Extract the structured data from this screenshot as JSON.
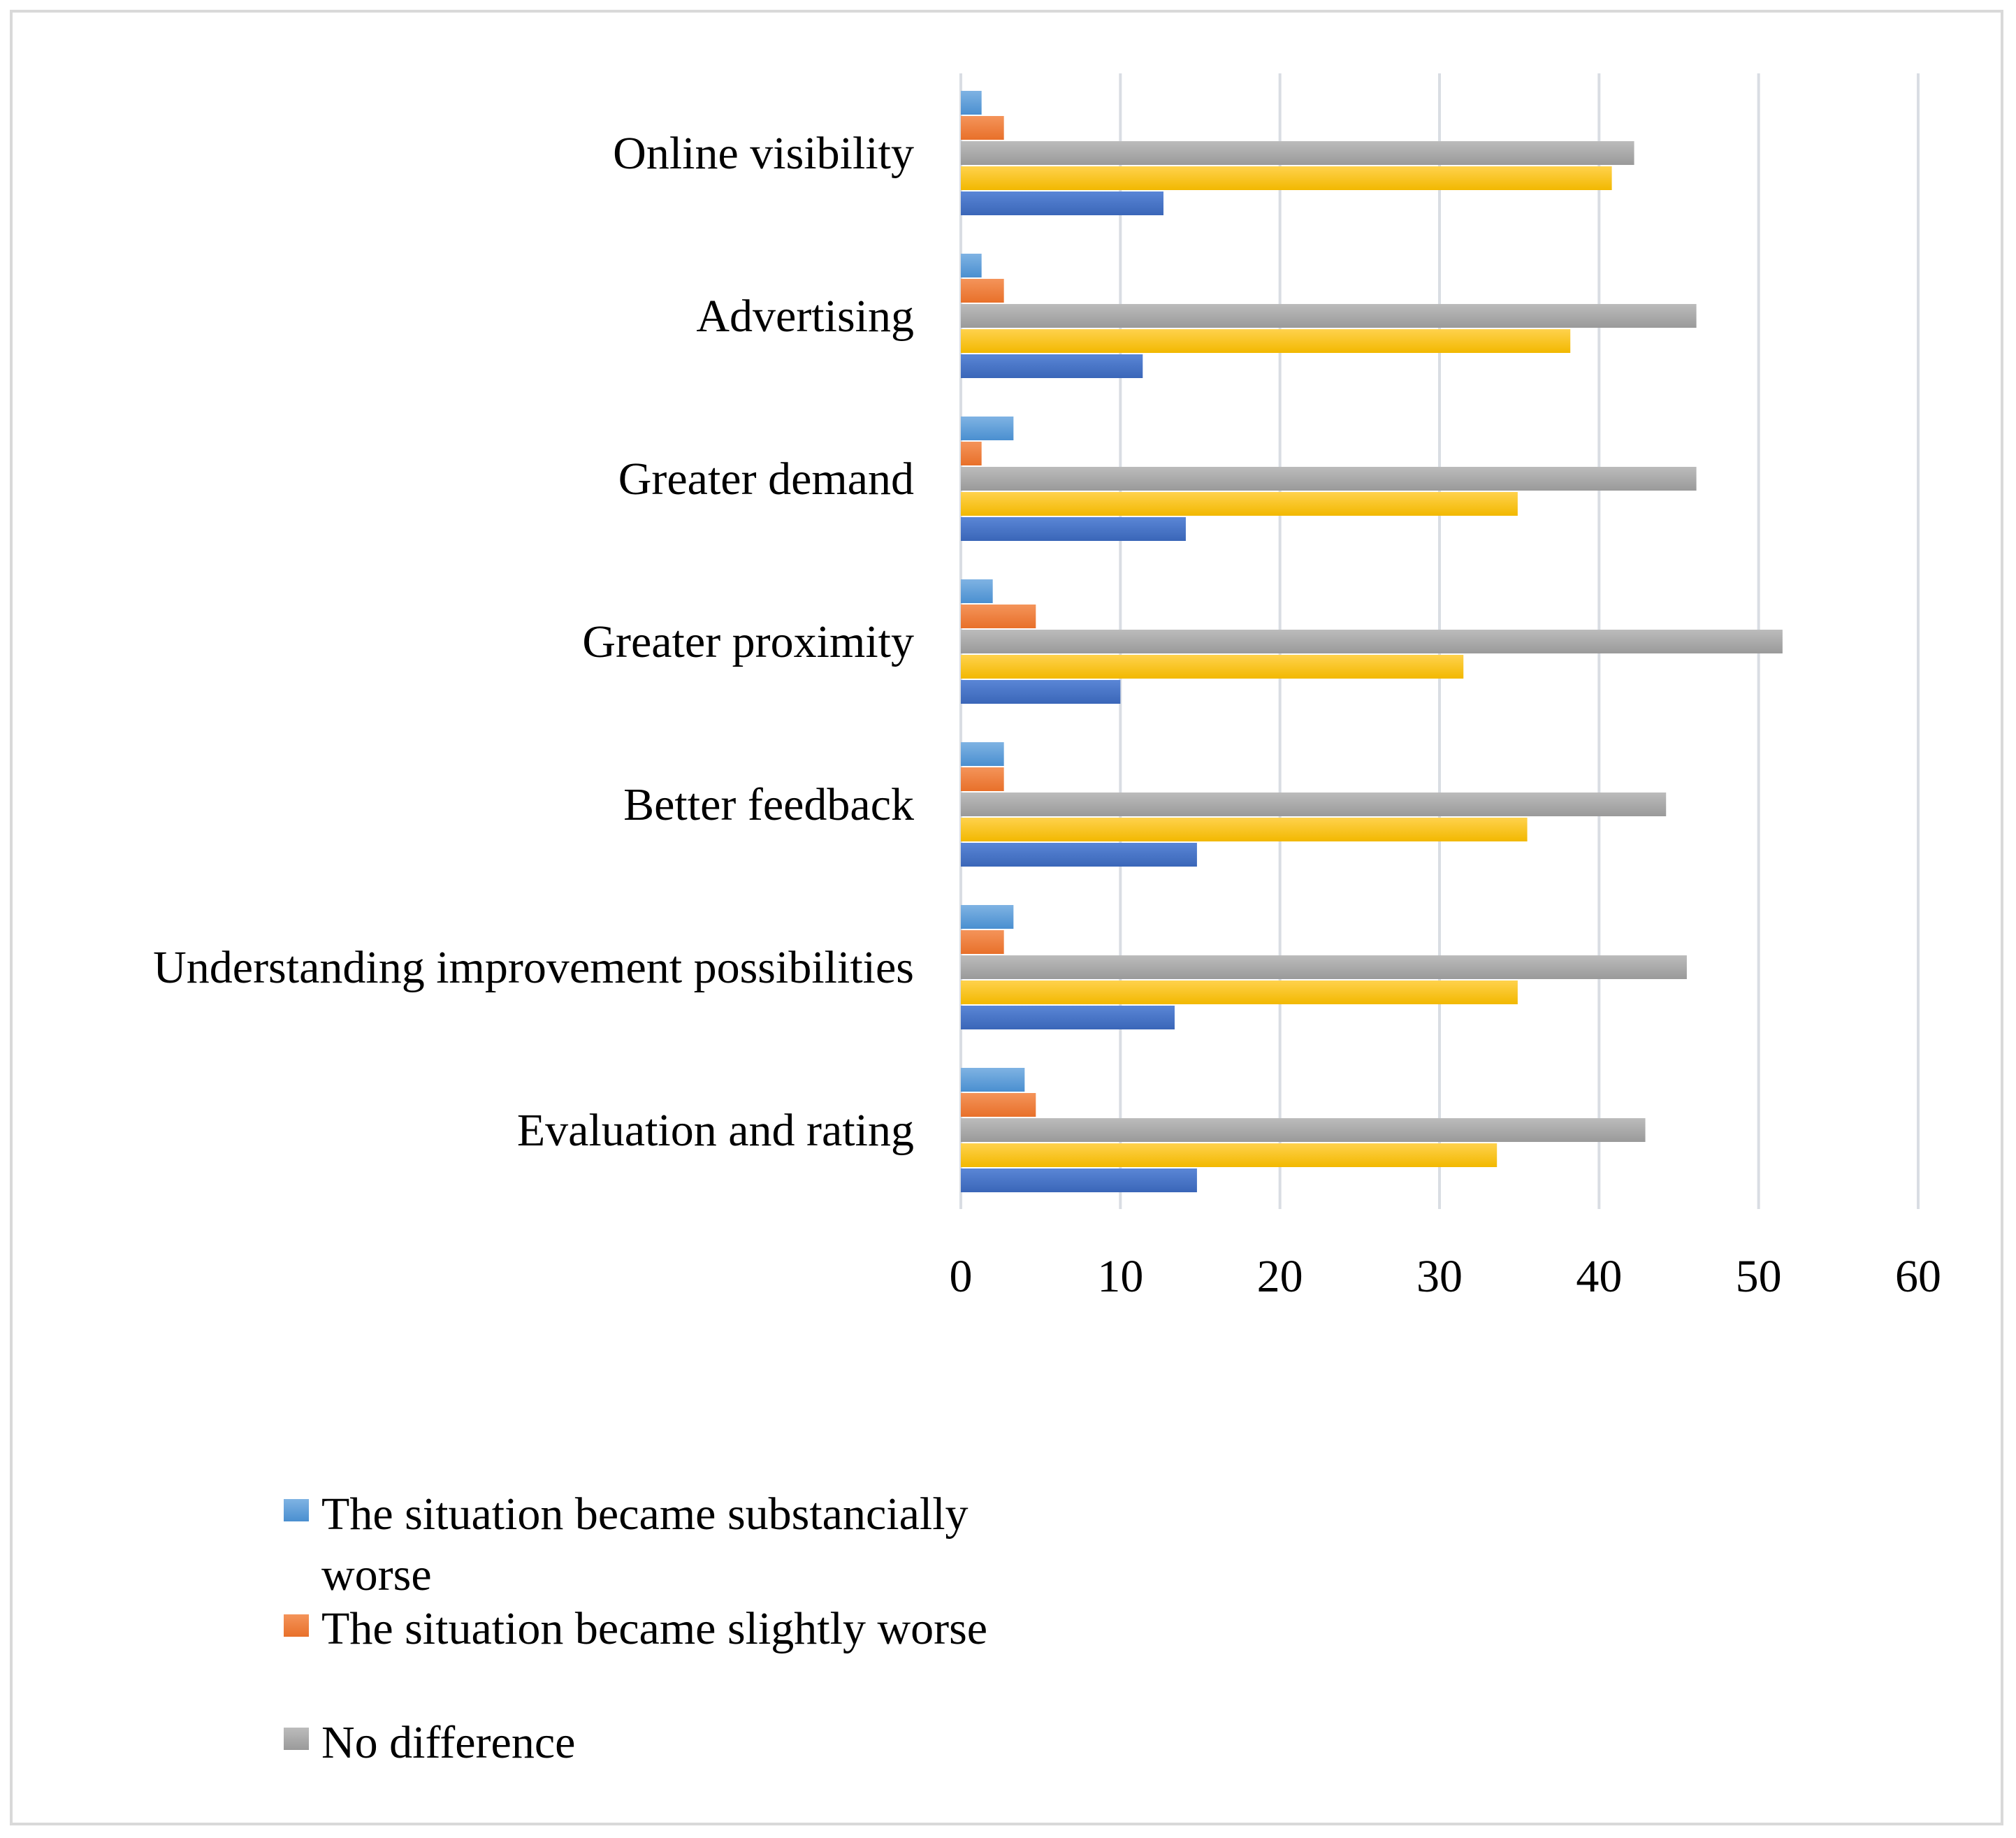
{
  "chart_data": {
    "type": "bar",
    "orientation": "horizontal",
    "title": "",
    "xlabel": "",
    "ylabel": "",
    "xlim": [
      0,
      60
    ],
    "x_ticks": [
      0,
      10,
      20,
      30,
      40,
      50,
      60
    ],
    "grid": true,
    "legend_position": "bottom-left",
    "categories": [
      "Online visibility",
      "Advertising",
      "Greater demand",
      "Greater proximity",
      "Better feedback",
      "Understanding improvement possibilities",
      "Evaluation and rating"
    ],
    "series": [
      {
        "name": "The situation became substancially worse",
        "color": "#5b9bd5",
        "values": [
          1.3,
          1.3,
          3.3,
          2.0,
          2.7,
          3.3,
          4.0
        ]
      },
      {
        "name": "The situation became slightly worse",
        "color": "#ed7d31",
        "values": [
          2.7,
          2.7,
          1.3,
          4.7,
          2.7,
          2.7,
          4.7
        ]
      },
      {
        "name": "No difference",
        "color": "#a5a5a5",
        "values": [
          42.2,
          46.1,
          46.1,
          51.5,
          44.2,
          45.5,
          42.9
        ]
      },
      {
        "name": "",
        "color": "#ffc000",
        "values": [
          40.8,
          38.2,
          34.9,
          31.5,
          35.5,
          34.9,
          33.6
        ]
      },
      {
        "name": "",
        "color": "#4472c4",
        "values": [
          12.7,
          11.4,
          14.1,
          10.0,
          14.8,
          13.4,
          14.8
        ]
      }
    ],
    "legend_lines": [
      [
        "The situation became substancially",
        "worse"
      ],
      [
        "The situation became slightly worse"
      ],
      [
        "No difference"
      ]
    ]
  }
}
